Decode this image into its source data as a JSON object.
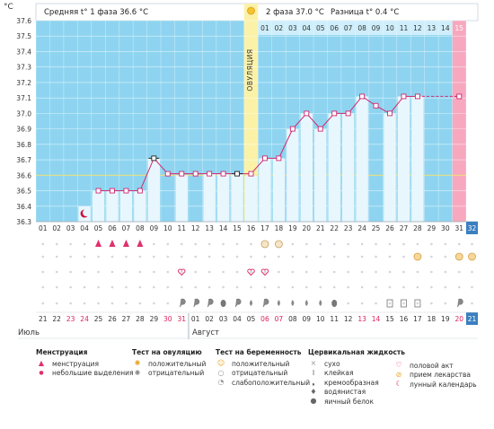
{
  "header": {
    "unit": "°C",
    "phase1_label": "Средняя t° 1 фаза 36.6 °C",
    "phase2_label": "2 фаза 37.0 °C",
    "difference_label": "Разница t° 0.4 °C",
    "ovulation_label": "ОВУЛЯЦИЯ"
  },
  "months": {
    "july": "Июль",
    "august": "Август"
  },
  "chart_data": {
    "type": "line",
    "title": "",
    "xlabel": "",
    "ylabel": "°C",
    "ylim": [
      36.3,
      37.6
    ],
    "y_ticks": [
      36.3,
      36.4,
      36.5,
      36.6,
      36.7,
      36.8,
      36.9,
      37.0,
      37.1,
      37.2,
      37.3,
      37.4,
      37.5,
      37.6
    ],
    "cycle_days": [
      "01",
      "02",
      "03",
      "04",
      "05",
      "06",
      "07",
      "08",
      "09",
      "10",
      "11",
      "12",
      "13",
      "14",
      "15",
      "16",
      "17",
      "18",
      "19",
      "20",
      "21",
      "22",
      "23",
      "24",
      "25",
      "26",
      "27",
      "28",
      "29",
      "30",
      "31",
      "32"
    ],
    "phase2_days": [
      "01",
      "02",
      "03",
      "04",
      "05",
      "06",
      "07",
      "08",
      "09",
      "10",
      "11",
      "12",
      "13",
      "14",
      "15"
    ],
    "ovulation_day": "16",
    "dates": [
      "21",
      "22",
      "23",
      "24",
      "25",
      "26",
      "27",
      "28",
      "29",
      "30",
      "31",
      "01",
      "02",
      "03",
      "04",
      "05",
      "06",
      "07",
      "08",
      "09",
      "10",
      "11",
      "12",
      "13",
      "14",
      "15",
      "16",
      "17",
      "18",
      "19",
      "20",
      "21"
    ],
    "weekend_dates_red": [
      2,
      3,
      9,
      10,
      16,
      17,
      23,
      24,
      30
    ],
    "series": [
      {
        "values": [
          null,
          null,
          null,
          null,
          36.5,
          36.5,
          36.5,
          36.5,
          36.71,
          36.61,
          36.61,
          36.61,
          36.61,
          36.61,
          36.61,
          36.61,
          36.71,
          36.71,
          36.9,
          37.0,
          36.9,
          37.0,
          37.0,
          37.11,
          37.05,
          37.0,
          37.11,
          37.11,
          37.11,
          37.11,
          37.11,
          null
        ]
      }
    ],
    "bar_values": [
      null,
      null,
      null,
      36.4,
      36.5,
      36.5,
      36.5,
      36.5,
      36.71,
      null,
      36.6,
      null,
      36.61,
      36.61,
      36.61,
      36.6,
      36.71,
      36.71,
      36.9,
      37.0,
      36.9,
      37.0,
      37.0,
      37.11,
      null,
      37.0,
      37.11,
      37.11,
      null,
      null,
      null,
      null
    ],
    "excluded_days": [
      "09",
      "15"
    ],
    "menstruation_days": [
      5,
      6,
      7,
      8
    ],
    "lunar_day": 4,
    "ovulation_test_positive_days": [
      17,
      18
    ],
    "intercourse_days": [
      11,
      16,
      17
    ],
    "medication_days": [
      28,
      31,
      32
    ],
    "cervical_fluid": {
      "sticky": [
        26,
        27,
        28
      ],
      "creamy": [
        11,
        12,
        13,
        15,
        17,
        31
      ],
      "watery": [
        16,
        18,
        19,
        20,
        21
      ],
      "eggwhite": [
        14,
        22
      ]
    },
    "cover_line": 36.6
  },
  "legend": {
    "menstruation": {
      "title": "Менструация",
      "items": [
        "менструация",
        "небольшие выделения"
      ]
    },
    "ovulation_test": {
      "title": "Тест на овуляцию",
      "items": [
        "положительный",
        "отрицательный"
      ]
    },
    "pregnancy_test": {
      "title": "Тест на беременность",
      "items": [
        "положительный",
        "отрицательный",
        "слабоположительный"
      ]
    },
    "cervical_fluid": {
      "title": "Цервикальная жидкость",
      "items": [
        "сухо",
        "клейкая",
        "кремообразная",
        "водянистая",
        "яичный белок"
      ]
    },
    "other": {
      "items": [
        "половой акт",
        "прием лекарства",
        "лунный календарь"
      ]
    }
  }
}
